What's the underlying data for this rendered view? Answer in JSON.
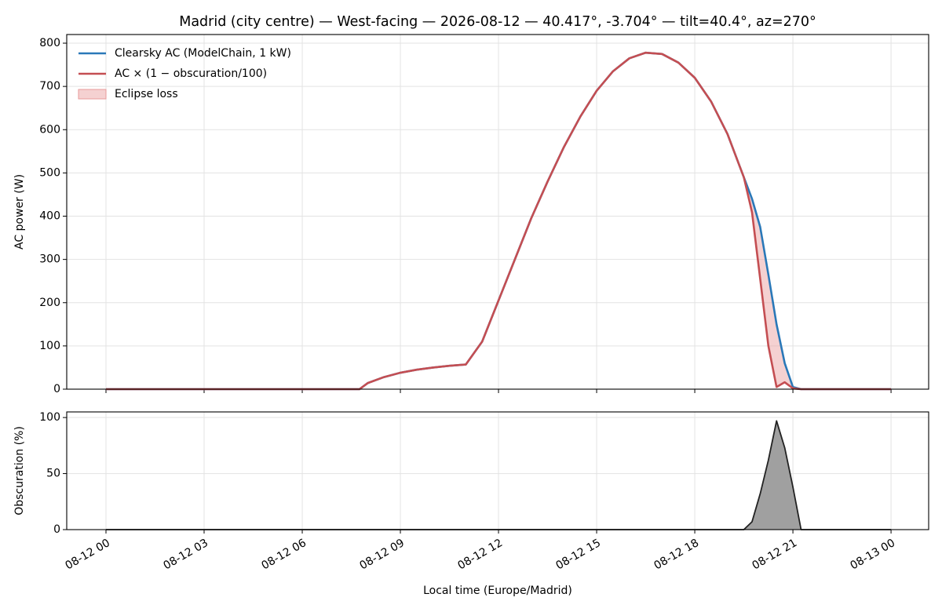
{
  "chart_data": [
    {
      "type": "line",
      "title": "Madrid (city centre) — West-facing — 2026-08-12 — 40.417°, -3.704° — tilt=40.4°, az=270°",
      "y_label": "AC power (W)",
      "x": [
        0,
        0.5,
        1,
        1.5,
        2,
        2.5,
        3,
        3.5,
        4,
        4.5,
        5,
        5.5,
        6,
        6.5,
        7,
        7.5,
        7.75,
        8,
        8.5,
        9,
        9.5,
        10,
        10.5,
        11,
        11.5,
        12,
        12.5,
        13,
        13.5,
        14,
        14.5,
        15,
        15.5,
        16,
        16.5,
        17,
        17.5,
        18,
        18.5,
        19,
        19.5,
        19.75,
        20,
        20.25,
        20.5,
        20.75,
        21,
        21.25,
        21.5,
        22,
        22.5,
        23,
        23.5,
        24
      ],
      "series": [
        {
          "name": "Clearsky AC (ModelChain, 1 kW)",
          "color": "#2a78b8",
          "values": [
            0,
            0,
            0,
            0,
            0,
            0,
            0,
            0,
            0,
            0,
            0,
            0,
            0,
            0,
            0,
            0,
            0,
            14,
            28,
            38,
            45,
            50,
            54,
            57,
            110,
            205,
            300,
            395,
            480,
            560,
            630,
            690,
            735,
            765,
            778,
            775,
            755,
            720,
            665,
            590,
            490,
            440,
            375,
            265,
            150,
            60,
            5,
            0,
            0,
            0,
            0,
            0,
            0,
            0
          ]
        },
        {
          "name": "AC × (1 − obscuration/100)",
          "color": "#c44e52",
          "values": [
            0,
            0,
            0,
            0,
            0,
            0,
            0,
            0,
            0,
            0,
            0,
            0,
            0,
            0,
            0,
            0,
            0,
            14,
            28,
            38,
            45,
            50,
            54,
            57,
            110,
            205,
            300,
            395,
            480,
            560,
            630,
            690,
            735,
            765,
            778,
            775,
            755,
            720,
            665,
            590,
            490,
            409,
            255,
            100,
            5,
            16,
            2,
            0,
            0,
            0,
            0,
            0,
            0,
            0
          ]
        }
      ],
      "fill_between": {
        "name": "Eclipse loss",
        "color": "#e89a9a"
      },
      "xlim": [
        -1.2,
        25.15
      ],
      "xticks": [
        0,
        3,
        6,
        9,
        12,
        15,
        18,
        21,
        24
      ],
      "ylim": [
        0,
        820
      ],
      "yticks": [
        0,
        100,
        200,
        300,
        400,
        500,
        600,
        700,
        800
      ],
      "grid": true,
      "legend": "upper left"
    },
    {
      "type": "area",
      "y_label": "Obscuration (%)",
      "x_label": "Local time (Europe/Madrid)",
      "x": [
        0,
        0.5,
        1,
        1.5,
        2,
        2.5,
        3,
        3.5,
        4,
        4.5,
        5,
        5.5,
        6,
        6.5,
        7,
        7.5,
        7.75,
        8,
        8.5,
        9,
        9.5,
        10,
        10.5,
        11,
        11.5,
        12,
        12.5,
        13,
        13.5,
        14,
        14.5,
        15,
        15.5,
        16,
        16.5,
        17,
        17.5,
        18,
        18.5,
        19,
        19.5,
        19.75,
        20,
        20.25,
        20.5,
        20.75,
        21,
        21.25,
        21.5,
        22,
        22.5,
        23,
        23.5,
        24
      ],
      "values": [
        0,
        0,
        0,
        0,
        0,
        0,
        0,
        0,
        0,
        0,
        0,
        0,
        0,
        0,
        0,
        0,
        0,
        0,
        0,
        0,
        0,
        0,
        0,
        0,
        0,
        0,
        0,
        0,
        0,
        0,
        0,
        0,
        0,
        0,
        0,
        0,
        0,
        0,
        0,
        0,
        0,
        7,
        32,
        62,
        97,
        73,
        38,
        0,
        0,
        0,
        0,
        0,
        0,
        0
      ],
      "color": "#222222",
      "fill_color": "#a0a0a0",
      "xlim": [
        -1.2,
        25.15
      ],
      "xticks": [
        {
          "value": 0,
          "label": "08-12 00"
        },
        {
          "value": 3,
          "label": "08-12 03"
        },
        {
          "value": 6,
          "label": "08-12 06"
        },
        {
          "value": 9,
          "label": "08-12 09"
        },
        {
          "value": 12,
          "label": "08-12 12"
        },
        {
          "value": 15,
          "label": "08-12 15"
        },
        {
          "value": 18,
          "label": "08-12 18"
        },
        {
          "value": 21,
          "label": "08-12 21"
        },
        {
          "value": 24,
          "label": "08-13 00"
        }
      ],
      "ylim": [
        0,
        105
      ],
      "yticks": [
        0,
        50,
        100
      ],
      "grid": true
    }
  ]
}
